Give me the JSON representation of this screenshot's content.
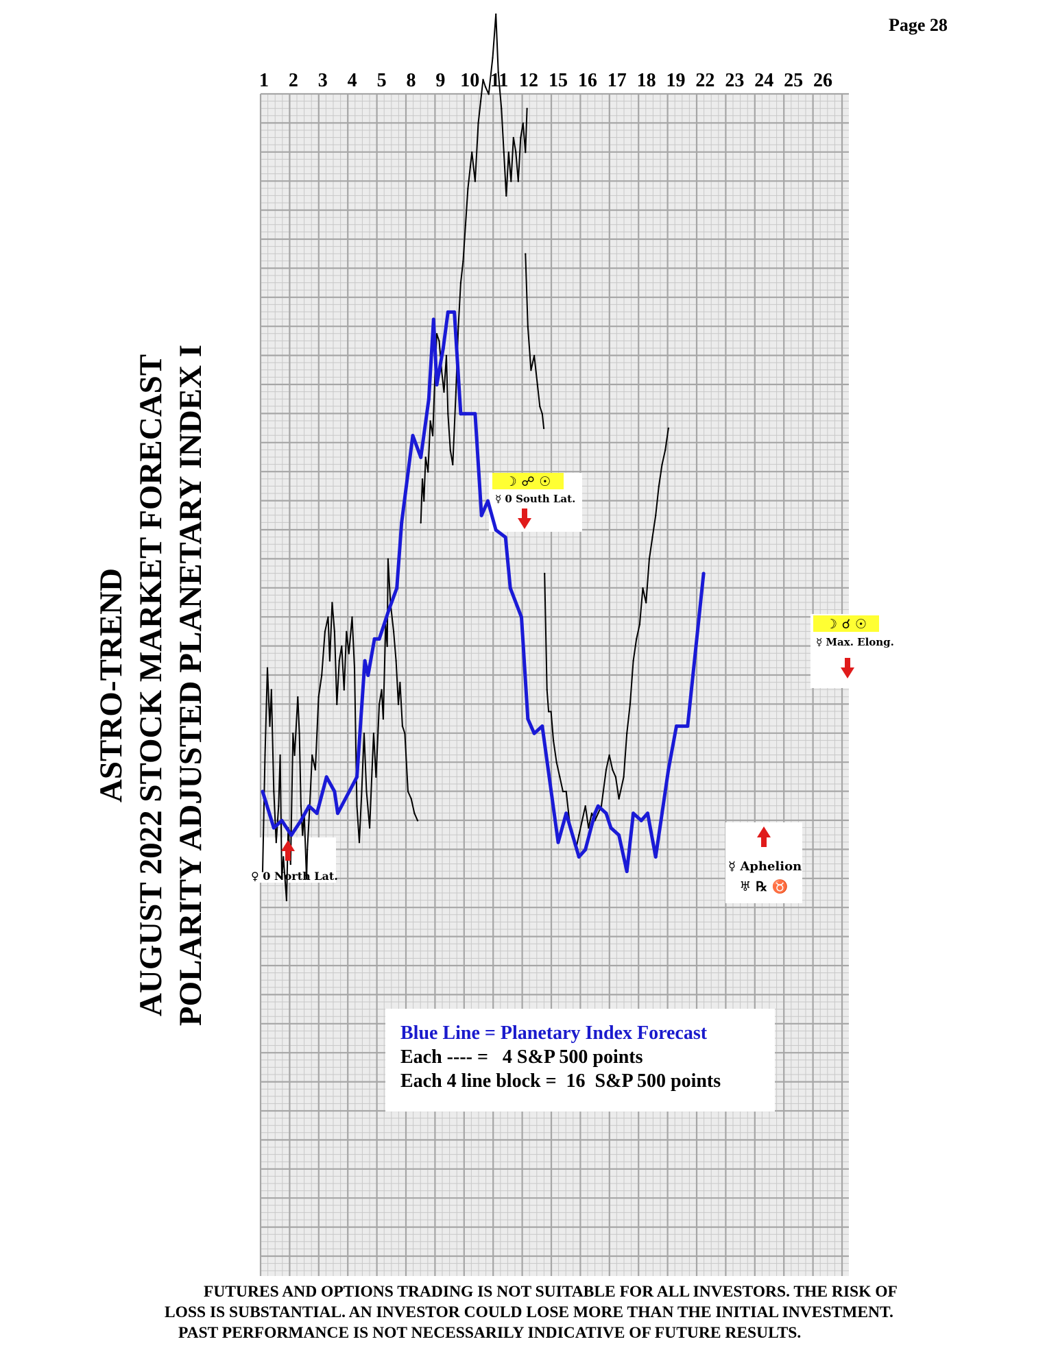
{
  "page_label": "Page  28",
  "title_lines": [
    "ASTRO-TREND",
    "AUGUST 2022  STOCK MARKET FORECAST",
    "POLARITY ADJUSTED PLANETARY INDEX I"
  ],
  "disclaimer": [
    "FUTURES AND OPTIONS TRADING IS NOT SUITABLE FOR ALL INVESTORS.  THE RISK OF",
    "LOSS IS SUBSTANTIAL.  AN INVESTOR COULD LOSE MORE THAN THE INITIAL INVESTMENT.",
    "PAST PERFORMANCE IS NOT NECESSARILY INDICATIVE OF FUTURE RESULTS."
  ],
  "colors": {
    "forecast_line": "#1a1ad6",
    "price_line": "#000000",
    "grid_minor": "#c8c8c8",
    "grid_major": "#a6a6a6",
    "arrow": "#e01b1b",
    "symbol_highlight": "#ffff33",
    "legend_title": "#1a1acc"
  },
  "chart_data": {
    "type": "line",
    "x_tick_labels": [
      "1",
      "2",
      "3",
      "4",
      "5",
      "8",
      "9",
      "10",
      "11",
      "12",
      "15",
      "16",
      "17",
      "18",
      "19",
      "22",
      "23",
      "24",
      "25",
      "26"
    ],
    "xlabel": "",
    "ylabel": "",
    "grid": true,
    "legend": {
      "title": "Blue Line = Planetary Index Forecast",
      "line1": "Each ---- =   4 S&P 500 points",
      "line2": "Each 4 line block =  16  S&P 500 points"
    },
    "series": [
      {
        "name": "Planetary Index Forecast",
        "color": "#1a1ad6",
        "points": [
          [
            0,
            0
          ],
          [
            0.7,
            -5
          ],
          [
            1.2,
            -4
          ],
          [
            1.8,
            -6
          ],
          [
            2.4,
            -4
          ],
          [
            2.9,
            -2
          ],
          [
            3.4,
            -3
          ],
          [
            4,
            2
          ],
          [
            4.5,
            0
          ],
          [
            4.7,
            -3
          ],
          [
            5.9,
            2
          ],
          [
            6.4,
            18
          ],
          [
            6.6,
            16
          ],
          [
            7,
            21
          ],
          [
            7.3,
            21
          ],
          [
            7.9,
            25
          ],
          [
            8.4,
            28
          ],
          [
            8.7,
            37
          ],
          [
            9.4,
            49
          ],
          [
            9.9,
            46
          ],
          [
            10.4,
            54
          ],
          [
            10.7,
            65
          ],
          [
            10.9,
            56
          ],
          [
            11.3,
            61
          ],
          [
            11.6,
            66
          ],
          [
            12,
            66
          ],
          [
            12.4,
            52
          ],
          [
            12.7,
            52
          ],
          [
            13.3,
            52
          ],
          [
            13.7,
            38
          ],
          [
            14.1,
            40
          ],
          [
            14.6,
            36
          ],
          [
            15.2,
            35
          ],
          [
            15.5,
            28
          ],
          [
            16.2,
            24
          ],
          [
            16.6,
            10
          ],
          [
            17,
            8
          ],
          [
            17.5,
            9
          ],
          [
            18.5,
            -7
          ],
          [
            19,
            -3
          ],
          [
            19.8,
            -9
          ],
          [
            20.2,
            -8
          ],
          [
            20.8,
            -3
          ],
          [
            21,
            -2
          ],
          [
            21.5,
            -3
          ],
          [
            21.8,
            -5
          ],
          [
            22.3,
            -6
          ],
          [
            22.8,
            -11
          ],
          [
            23.2,
            -3
          ],
          [
            23.7,
            -4
          ],
          [
            24.1,
            -3
          ],
          [
            24.6,
            -9
          ],
          [
            25,
            -3
          ],
          [
            25.4,
            3
          ],
          [
            25.9,
            9
          ],
          [
            26.6,
            9
          ],
          [
            27.6,
            30
          ]
        ]
      },
      {
        "name": "S&P 500",
        "color": "#000000",
        "segments": [
          [
            [
              0,
              -11
            ],
            [
              0.15,
              5
            ],
            [
              0.3,
              17
            ],
            [
              0.45,
              9
            ],
            [
              0.55,
              14
            ],
            [
              0.7,
              0
            ],
            [
              0.85,
              -7
            ],
            [
              1,
              -2
            ],
            [
              1.1,
              5
            ],
            [
              1.2,
              -12
            ],
            [
              1.3,
              -9
            ],
            [
              1.5,
              -15
            ],
            [
              1.6,
              -5
            ],
            [
              1.75,
              -10
            ],
            [
              1.9,
              8
            ],
            [
              2,
              5
            ],
            [
              2.2,
              13
            ],
            [
              2.3,
              8
            ],
            [
              2.4,
              -2
            ],
            [
              2.5,
              -6
            ],
            [
              2.6,
              -3
            ],
            [
              2.75,
              -12
            ],
            [
              2.8,
              -8
            ],
            [
              2.95,
              -2
            ],
            [
              3.1,
              5
            ],
            [
              3.3,
              3
            ],
            [
              3.5,
              13
            ],
            [
              3.7,
              16
            ],
            [
              3.9,
              22
            ],
            [
              4.1,
              24
            ],
            [
              4.2,
              18
            ],
            [
              4.35,
              26
            ],
            [
              4.5,
              22
            ],
            [
              4.65,
              12
            ],
            [
              4.8,
              18
            ],
            [
              4.95,
              20
            ],
            [
              5.1,
              14
            ],
            [
              5.25,
              22
            ],
            [
              5.4,
              19
            ],
            [
              5.6,
              24
            ],
            [
              5.75,
              17
            ],
            [
              5.9,
              -2
            ],
            [
              6.05,
              -7
            ],
            [
              6.2,
              0
            ],
            [
              6.35,
              8
            ],
            [
              6.5,
              0
            ],
            [
              6.7,
              -5
            ],
            [
              6.85,
              3
            ],
            [
              6.95,
              8
            ],
            [
              7.1,
              2
            ],
            [
              7.3,
              12
            ],
            [
              7.45,
              14
            ],
            [
              7.55,
              10
            ],
            [
              7.7,
              23
            ],
            [
              7.8,
              20
            ],
            [
              7.85,
              32
            ],
            [
              8,
              26
            ],
            [
              8.2,
              22
            ],
            [
              8.35,
              18
            ],
            [
              8.5,
              12
            ],
            [
              8.6,
              15
            ],
            [
              8.75,
              9
            ],
            [
              8.9,
              8
            ],
            [
              9.1,
              0
            ],
            [
              9.3,
              -1
            ],
            [
              9.5,
              -3
            ],
            [
              9.7,
              -4
            ]
          ],
          [
            [
              9.9,
              37
            ],
            [
              10,
              43
            ],
            [
              10.1,
              40
            ],
            [
              10.2,
              46
            ],
            [
              10.35,
              44
            ],
            [
              10.5,
              51
            ],
            [
              10.65,
              49
            ],
            [
              10.8,
              58
            ],
            [
              10.9,
              63
            ],
            [
              11.05,
              62
            ],
            [
              11.2,
              58
            ],
            [
              11.35,
              55
            ],
            [
              11.5,
              60
            ],
            [
              11.6,
              52
            ],
            [
              11.75,
              47
            ],
            [
              11.9,
              45
            ],
            [
              12.1,
              55
            ],
            [
              12.25,
              64
            ],
            [
              12.4,
              70
            ],
            [
              12.55,
              73
            ],
            [
              12.7,
              78
            ],
            [
              12.85,
              83
            ],
            [
              13,
              86
            ],
            [
              13.1,
              88
            ],
            [
              13.3,
              84
            ],
            [
              13.5,
              92
            ],
            [
              13.65,
              95
            ],
            [
              13.8,
              98
            ],
            [
              13.95,
              97
            ],
            [
              14.15,
              96
            ],
            [
              14.4,
              101
            ],
            [
              14.6,
              107
            ],
            [
              14.75,
              99
            ],
            [
              14.95,
              94
            ],
            [
              15.1,
              88
            ],
            [
              15.25,
              82
            ],
            [
              15.4,
              88
            ],
            [
              15.55,
              84
            ],
            [
              15.7,
              90
            ],
            [
              15.85,
              88
            ],
            [
              16,
              84
            ],
            [
              16.15,
              90
            ],
            [
              16.3,
              92
            ],
            [
              16.45,
              88
            ],
            [
              16.55,
              94
            ]
          ],
          [
            [
              16.45,
              74
            ],
            [
              16.6,
              64
            ],
            [
              16.8,
              58
            ],
            [
              17,
              60
            ],
            [
              17.2,
              56
            ],
            [
              17.35,
              53
            ],
            [
              17.5,
              52
            ],
            [
              17.6,
              50
            ]
          ],
          [
            [
              17.65,
              30
            ],
            [
              17.8,
              14
            ],
            [
              17.9,
              11
            ],
            [
              18.05,
              11
            ],
            [
              18.2,
              7
            ],
            [
              18.4,
              4
            ],
            [
              18.6,
              2
            ],
            [
              18.8,
              0
            ],
            [
              19,
              0
            ],
            [
              19.2,
              -4
            ],
            [
              19.4,
              -6
            ],
            [
              19.6,
              -8
            ],
            [
              19.8,
              -6
            ],
            [
              20,
              -4
            ],
            [
              20.2,
              -2
            ],
            [
              20.4,
              -5
            ],
            [
              20.6,
              -3
            ],
            [
              20.8,
              -4
            ],
            [
              21,
              -3
            ],
            [
              21.2,
              -2
            ],
            [
              21.5,
              3
            ],
            [
              21.7,
              5
            ],
            [
              21.9,
              3
            ],
            [
              22.1,
              2
            ],
            [
              22.3,
              -1
            ],
            [
              22.6,
              2
            ],
            [
              22.8,
              8
            ],
            [
              23,
              12
            ],
            [
              23.2,
              18
            ],
            [
              23.4,
              21
            ],
            [
              23.6,
              23
            ],
            [
              23.8,
              28
            ],
            [
              24,
              26
            ],
            [
              24.2,
              32
            ],
            [
              24.4,
              35
            ],
            [
              24.6,
              38
            ],
            [
              24.8,
              42
            ],
            [
              25,
              45
            ],
            [
              25.2,
              47
            ],
            [
              25.4,
              50
            ]
          ]
        ]
      }
    ],
    "annotations": [
      {
        "symbols": "",
        "text": "♀ 0 North Lat.",
        "arrow": "up"
      },
      {
        "symbols": "☽ ☍ ☉",
        "text": "☿ 0 South Lat.",
        "arrow": "down"
      },
      {
        "symbols": "",
        "text": "☿ Aphelion",
        "subtext": "♅ ℞ ♉",
        "arrow": "up"
      },
      {
        "symbols": "☽ ☌ ☉",
        "text": "☿ Max. Elong.",
        "arrow": "down"
      }
    ]
  }
}
